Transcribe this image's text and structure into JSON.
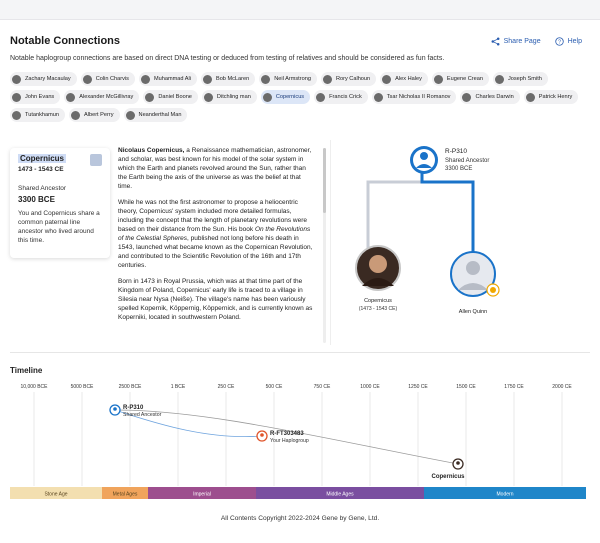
{
  "header": {
    "title": "Notable Connections",
    "share_label": "Share Page",
    "help_label": "Help"
  },
  "subtitle": "Notable haplogroup connections are based on direct DNA testing or deduced from testing of relatives and should be considered as fun facts.",
  "chips": [
    {
      "label": "Zachary Macaulay"
    },
    {
      "label": "Colin Charvis"
    },
    {
      "label": "Muhammad Ali"
    },
    {
      "label": "Bob McLaren"
    },
    {
      "label": "Neil Armstrong"
    },
    {
      "label": "Rory Calhoun"
    },
    {
      "label": "Alex Haley"
    },
    {
      "label": "Eugene Crean"
    },
    {
      "label": "Joseph Smith"
    },
    {
      "label": "John Evans"
    },
    {
      "label": "Alexander McGillivray"
    },
    {
      "label": "Daniel Boone"
    },
    {
      "label": "Ditchling man"
    },
    {
      "label": "Copernicus",
      "selected": true
    },
    {
      "label": "Francis Crick"
    },
    {
      "label": "Tsar Nicholas II Romanov"
    },
    {
      "label": "Charles Darwin"
    },
    {
      "label": "Patrick Henry"
    },
    {
      "label": "Tutankhamun"
    },
    {
      "label": "Albert Perry"
    },
    {
      "label": "Neanderthal Man"
    }
  ],
  "card": {
    "name": "Copernicus",
    "dates": "1473 - 1543 CE",
    "ancestor_label": "Shared Ancestor",
    "ancestor_year": "3300 BCE",
    "description": "You and Copernicus share a common paternal line ancestor who lived around this time."
  },
  "bio": {
    "p1_name": "Nicolaus Copernicus,",
    "p1_rest": " a Renaissance mathematician, astronomer, and scholar, was best known for his model of the solar system in which the Earth and planets revolved around the Sun, rather than the Earth being the axis of the universe as was the belief at that time.",
    "p2_a": "While he was not the first astronomer to propose a heliocentric theory, Copernicus' system included more detailed formulas, including the concept that the length of planetary revolutions were based on their distance from the Sun. His book ",
    "p2_book": "On the Revolutions of the Celestial Spheres",
    "p2_b": ", published not long before his death in 1543, launched what became known as the Copernican Revolution, and contributed to the Scientific Revolution of the 16th and 17th centuries.",
    "p3": "Born in 1473 in Royal Prussia, which was at that time part of the Kingdom of Poland, Copernicus' early life is traced to a village in Silesia near Nysa (Neiße). The village's name has been variously spelled Kopernik, Köppernig, Köppernick, and is currently known as Koperniki, located in southwestern Poland."
  },
  "tree": {
    "root_haplo": "R-P310",
    "root_label": "Shared Ancestor",
    "root_year": "3300 BCE",
    "left_name": "Copernicus",
    "left_dates": "(1473 - 1543 CE)",
    "right_name": "Allen Quinn"
  },
  "timeline": {
    "title": "Timeline",
    "ticks": [
      "10,000 BCE",
      "5000 BCE",
      "2500 BCE",
      "1 BCE",
      "250 CE",
      "500 CE",
      "750 CE",
      "1000 CE",
      "1250 CE",
      "1500 CE",
      "1750 CE",
      "2000 CE"
    ],
    "markers": [
      {
        "haplo": "R-P310",
        "label": "Shared Ancestor"
      },
      {
        "haplo": "R-FT303483",
        "label": "Your Haplogroup"
      },
      {
        "haplo": "",
        "label": "Copernicus"
      }
    ],
    "eras": [
      {
        "label": "Stone Age",
        "color": "#f3dfb0"
      },
      {
        "label": "Metal Ages",
        "color": "#f0a45c"
      },
      {
        "label": "Imperial",
        "color": "#9d4e8e"
      },
      {
        "label": "Middle Ages",
        "color": "#7a4ea0"
      },
      {
        "label": "Modern",
        "color": "#1f86c9"
      }
    ]
  },
  "footer": "All Contents Copyright 2022-2024 Gene by Gene, Ltd.",
  "colors": {
    "accent": "#2a5db0",
    "tree_line": "#1a73c9",
    "gray_line": "#c8cdd6"
  }
}
